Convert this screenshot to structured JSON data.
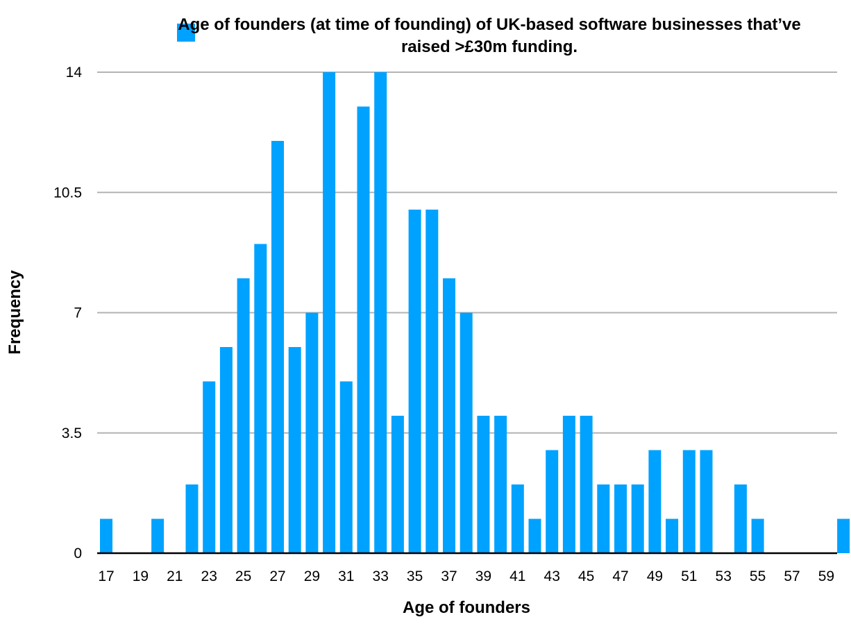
{
  "chart_data": {
    "type": "bar",
    "legend": {
      "series_name": "Age of founders (at time of founding) of UK-based software businesses that’ve raised >£30m funding.",
      "placement": "top"
    },
    "xlabel": "Age of founders",
    "ylabel": "Frequency",
    "ylim": [
      0,
      14
    ],
    "y_ticks": [
      "0",
      "3.5",
      "7",
      "10.5",
      "14"
    ],
    "y_tick_values": [
      0,
      3.5,
      7,
      10.5,
      14
    ],
    "grid": true,
    "x_tick_labels": [
      "17",
      "19",
      "21",
      "23",
      "25",
      "27",
      "29",
      "31",
      "33",
      "35",
      "37",
      "39",
      "41",
      "43",
      "45",
      "47",
      "49",
      "51",
      "53",
      "55",
      "57",
      "59"
    ],
    "categories": [
      17,
      18,
      19,
      20,
      21,
      22,
      23,
      24,
      25,
      26,
      27,
      28,
      29,
      30,
      31,
      32,
      33,
      34,
      35,
      36,
      37,
      38,
      39,
      40,
      41,
      42,
      43,
      44,
      45,
      46,
      47,
      48,
      49,
      50,
      51,
      52,
      53,
      54,
      55,
      56,
      57,
      58,
      59,
      60
    ],
    "values": [
      1,
      0,
      0,
      1,
      0,
      2,
      5,
      6,
      8,
      9,
      12,
      6,
      7,
      14,
      5,
      13,
      14,
      4,
      10,
      10,
      8,
      7,
      4,
      4,
      2,
      1,
      3,
      4,
      4,
      2,
      2,
      2,
      3,
      1,
      3,
      3,
      0,
      2,
      1,
      0,
      0,
      0,
      0,
      1
    ],
    "color": "#00a2ff"
  }
}
